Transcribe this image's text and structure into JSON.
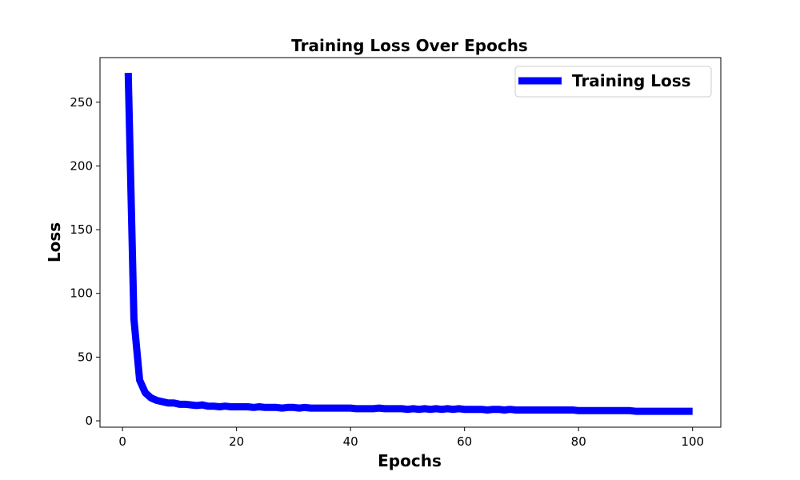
{
  "chart_data": {
    "type": "line",
    "title": "Training Loss Over Epochs",
    "xlabel": "Epochs",
    "ylabel": "Loss",
    "xlim": [
      -3.95,
      104.95
    ],
    "ylim": [
      -5,
      285
    ],
    "xticks": [
      0,
      20,
      40,
      60,
      80,
      100
    ],
    "yticks": [
      0,
      50,
      100,
      150,
      200,
      250
    ],
    "grid": false,
    "legend_position": "top-right",
    "series": [
      {
        "name": "Training Loss",
        "color": "#0000ff",
        "x": [
          1,
          2,
          3,
          4,
          5,
          6,
          7,
          8,
          9,
          10,
          11,
          12,
          13,
          14,
          15,
          16,
          17,
          18,
          19,
          20,
          21,
          22,
          23,
          24,
          25,
          26,
          27,
          28,
          29,
          30,
          31,
          32,
          33,
          34,
          35,
          36,
          37,
          38,
          39,
          40,
          41,
          42,
          43,
          44,
          45,
          46,
          47,
          48,
          49,
          50,
          51,
          52,
          53,
          54,
          55,
          56,
          57,
          58,
          59,
          60,
          61,
          62,
          63,
          64,
          65,
          66,
          67,
          68,
          69,
          70,
          71,
          72,
          73,
          74,
          75,
          76,
          77,
          78,
          79,
          80,
          81,
          82,
          83,
          84,
          85,
          86,
          87,
          88,
          89,
          90,
          91,
          92,
          93,
          94,
          95,
          96,
          97,
          98,
          99,
          100
        ],
        "y": [
          273,
          80,
          32,
          22,
          18,
          16,
          15,
          14,
          14,
          13,
          13,
          12.5,
          12,
          12.5,
          11.5,
          11.5,
          11,
          11.5,
          11,
          11,
          11,
          11,
          10.5,
          11,
          10.5,
          10.5,
          10.5,
          10,
          10.5,
          10.5,
          10,
          10.5,
          10,
          10,
          10,
          10,
          10,
          10,
          10,
          10,
          9.5,
          9.5,
          9.5,
          9.5,
          10,
          9.5,
          9.5,
          9.5,
          9.5,
          9,
          9.5,
          9,
          9.5,
          9,
          9.5,
          9,
          9.5,
          9,
          9.5,
          9,
          9,
          9,
          9,
          8.5,
          9,
          9,
          8.5,
          9,
          8.5,
          8.5,
          8.5,
          8.5,
          8.5,
          8.5,
          8.5,
          8.5,
          8.5,
          8.5,
          8.5,
          8,
          8,
          8,
          8,
          8,
          8,
          8,
          8,
          8,
          8,
          7.5,
          7.5,
          7.5,
          7.5,
          7.5,
          7.5,
          7.5,
          7.5,
          7.5,
          7.5,
          7.5
        ]
      }
    ]
  }
}
